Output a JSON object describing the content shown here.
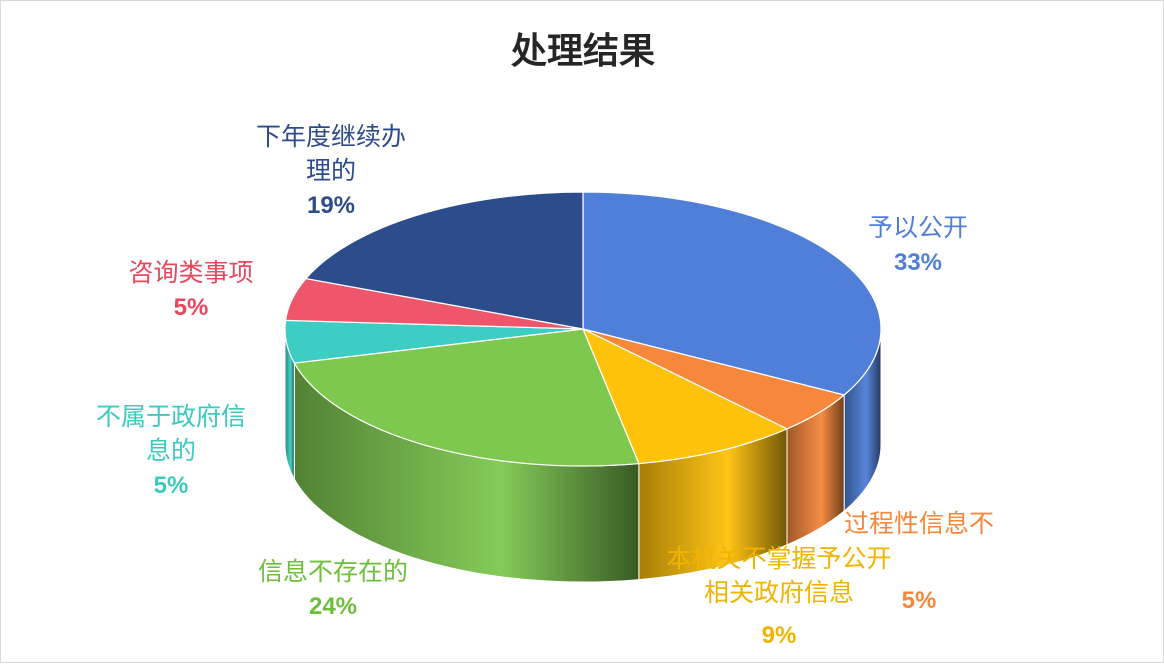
{
  "chart_data": {
    "type": "pie",
    "title": "处理结果",
    "slices": [
      {
        "label": "予以公开",
        "label_lines": [
          "予以公开"
        ],
        "pct_label": "33%",
        "value": 33,
        "color": "#4f7fd9"
      },
      {
        "label": "过程性信息不",
        "label_lines": [
          "过程性信息不"
        ],
        "pct_label": "5%",
        "value": 5,
        "color": "#f7873a"
      },
      {
        "label": "本机关不掌握予公开相关政府信息",
        "label_lines": [
          "本机关不掌握予公开",
          "相关政府信息"
        ],
        "pct_label": "9%",
        "value": 9,
        "color": "#ffc20a"
      },
      {
        "label": "信息不存在的",
        "label_lines": [
          "信息不存在的"
        ],
        "pct_label": "24%",
        "value": 24,
        "color": "#7ec850"
      },
      {
        "label": "不属于政府信息的",
        "label_lines": [
          "不属于政府信",
          "息的"
        ],
        "pct_label": "5%",
        "value": 5,
        "color": "#3dcdc2"
      },
      {
        "label": "咨询类事项",
        "label_lines": [
          "咨询类事项"
        ],
        "pct_label": "5%",
        "value": 5,
        "color": "#f0566b"
      },
      {
        "label": "下年度继续办理的",
        "label_lines": [
          "下年度继续办",
          "理的"
        ],
        "pct_label": "19%",
        "value": 19,
        "color": "#2d4c8c"
      }
    ],
    "label_colors": {
      "予以公开": "#4f7fd9",
      "过程性信息不": "#f7873a",
      "本机关不掌握予公开相关政府信息": "#f0b400",
      "信息不存在的": "#6cbf3a",
      "不属于政府信息的": "#3cc9bf",
      "咨询类事项": "#e8485e",
      "下年度继续办理的": "#2d4c8c"
    }
  }
}
